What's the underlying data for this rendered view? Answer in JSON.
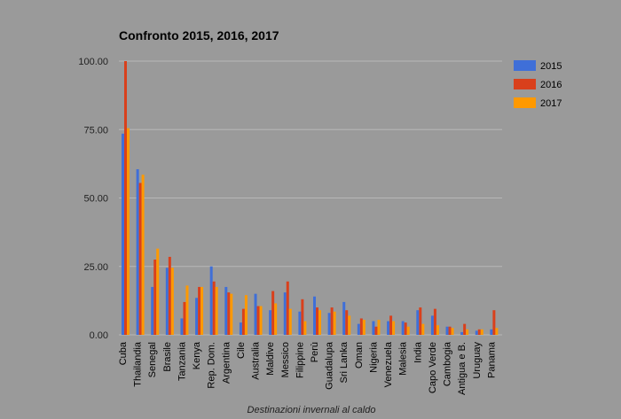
{
  "chart_data": {
    "type": "bar",
    "title": "Confronto 2015, 2016, 2017",
    "xlabel": "Destinazioni invernali al caldo",
    "ylabel": "",
    "ylim": [
      0,
      100
    ],
    "yticks": [
      "0.00",
      "25.00",
      "50.00",
      "75.00",
      "100.00"
    ],
    "grid": true,
    "legend_position": "right",
    "categories": [
      "Cuba",
      "Thailandia",
      "Senegal",
      "Brasile",
      "Tanzania",
      "Kenya",
      "Rep. Dom.",
      "Argentina",
      "Cile",
      "Australia",
      "Maldive",
      "Messico",
      "Filippine",
      "Perù",
      "Guadalupa",
      "Sri Lanka",
      "Oman",
      "Nigeria",
      "Venezuela",
      "Malesia",
      "India",
      "Capo Verde",
      "Cambogia",
      "Antigua e B.",
      "Uruguay",
      "Panama"
    ],
    "series": [
      {
        "name": "2015",
        "color": "#3f6fd8",
        "values": [
          73.5,
          60.5,
          17.5,
          24.5,
          6,
          13.5,
          25,
          17.5,
          4.5,
          15,
          9,
          15.5,
          8.5,
          14,
          8,
          12,
          4,
          5,
          5,
          5,
          9,
          7,
          3,
          1,
          1.5,
          2
        ]
      },
      {
        "name": "2016",
        "color": "#d9401c",
        "values": [
          100,
          55.5,
          27.5,
          28.5,
          12,
          17.5,
          19.5,
          15.5,
          9.5,
          10.5,
          16,
          19.5,
          13,
          10,
          10,
          9,
          6,
          3,
          7,
          4.5,
          10,
          9.5,
          3,
          4,
          2,
          9
        ]
      },
      {
        "name": "2017",
        "color": "#ff9900",
        "values": [
          75.5,
          58.5,
          31.5,
          24.5,
          18,
          17.5,
          17.5,
          15,
          14.5,
          10.5,
          11.5,
          9.5,
          5,
          9,
          8.5,
          7,
          5.5,
          5.5,
          5,
          3,
          4,
          3.5,
          2.5,
          2,
          2,
          2.5
        ]
      }
    ]
  }
}
